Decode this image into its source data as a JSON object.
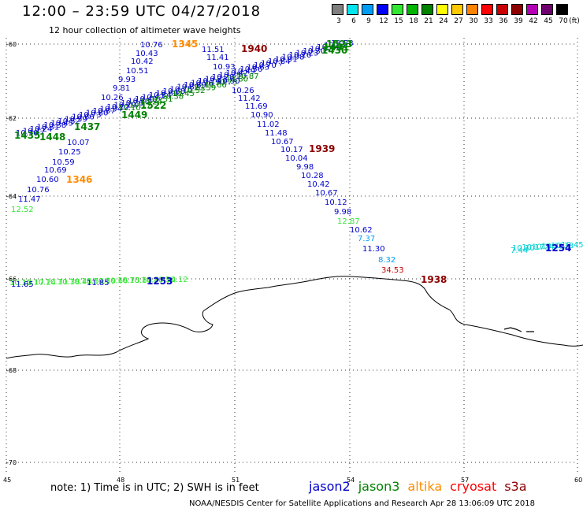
{
  "header": {
    "title": "12:00 – 23:59 UTC 04/27/2018",
    "subtitle": "12 hour collection of altimeter wave heights"
  },
  "scale": {
    "unit": "(ft)",
    "bins": [
      {
        "label": "3",
        "color": "#7f7f7f"
      },
      {
        "label": "6",
        "color": "#00e5ee"
      },
      {
        "label": "9",
        "color": "#009cf5"
      },
      {
        "label": "12",
        "color": "#0000ff"
      },
      {
        "label": "15",
        "color": "#32e632"
      },
      {
        "label": "18",
        "color": "#00b400"
      },
      {
        "label": "21",
        "color": "#008200"
      },
      {
        "label": "24",
        "color": "#ffff00"
      },
      {
        "label": "27",
        "color": "#ffc800"
      },
      {
        "label": "30",
        "color": "#ff8200"
      },
      {
        "label": "33",
        "color": "#ff0000"
      },
      {
        "label": "36",
        "color": "#c80000"
      },
      {
        "label": "39",
        "color": "#8c0000"
      },
      {
        "label": "42",
        "color": "#b400b4"
      },
      {
        "label": "45",
        "color": "#6e006e"
      },
      {
        "label": "70",
        "color": "#000000"
      }
    ]
  },
  "axes": {
    "lat_labels": [
      "-60",
      "-62",
      "-64",
      "-66",
      "-68",
      "-70"
    ],
    "lon_labels": [
      "45",
      "48",
      "51",
      "54",
      "57",
      "60"
    ]
  },
  "observations": [
    {
      "text": "10.76",
      "color": "#0000cc"
    },
    {
      "text": "10.43",
      "color": "#0000cc"
    },
    {
      "text": "10.42",
      "color": "#0000cc"
    },
    {
      "text": "10.51",
      "color": "#0000cc"
    },
    {
      "text": "9.93",
      "color": "#0000cc"
    },
    {
      "text": "9.81",
      "color": "#0000cc"
    },
    {
      "text": "10.26",
      "color": "#0000cc"
    },
    {
      "text": "10.07",
      "color": "#0000cc"
    },
    {
      "text": "10.25",
      "color": "#0000cc"
    },
    {
      "text": "10.59",
      "color": "#0000cc"
    },
    {
      "text": "10.69",
      "color": "#0000cc"
    },
    {
      "text": "10.60",
      "color": "#0000cc"
    },
    {
      "text": "10.76",
      "color": "#0000cc"
    },
    {
      "text": "11.47",
      "color": "#0000cc"
    },
    {
      "text": "12.52",
      "color": "#32e632"
    },
    {
      "text": "11.51",
      "color": "#0000cc"
    },
    {
      "text": "11.41",
      "color": "#0000cc"
    },
    {
      "text": "10.93",
      "color": "#0000cc"
    },
    {
      "text": "10.90",
      "color": "#0000cc"
    },
    {
      "text": "10.26",
      "color": "#0000cc"
    },
    {
      "text": "11.42",
      "color": "#0000cc"
    },
    {
      "text": "11.69",
      "color": "#0000cc"
    },
    {
      "text": "10.90",
      "color": "#0000cc"
    },
    {
      "text": "11.02",
      "color": "#0000cc"
    },
    {
      "text": "11.48",
      "color": "#0000cc"
    },
    {
      "text": "10.67",
      "color": "#0000cc"
    },
    {
      "text": "10.17",
      "color": "#0000cc"
    },
    {
      "text": "10.04",
      "color": "#0000cc"
    },
    {
      "text": "9.98",
      "color": "#0000cc"
    },
    {
      "text": "10.28",
      "color": "#0000cc"
    },
    {
      "text": "10.42",
      "color": "#0000cc"
    },
    {
      "text": "10.67",
      "color": "#0000cc"
    },
    {
      "text": "10.12",
      "color": "#0000cc"
    },
    {
      "text": "9.98",
      "color": "#0000cc"
    },
    {
      "text": "12.87",
      "color": "#32e632"
    },
    {
      "text": "7.37",
      "color": "#009cf5"
    },
    {
      "text": "10.62",
      "color": "#0000cc"
    },
    {
      "text": "11.30",
      "color": "#0000cc"
    },
    {
      "text": "8.32",
      "color": "#009cf5"
    },
    {
      "text": "34.53",
      "color": "#c80000"
    },
    {
      "text": "7.44",
      "color": "#00d0d0"
    },
    {
      "text": "11.65",
      "color": "#0000cc"
    },
    {
      "text": "11.85",
      "color": "#0000cc"
    }
  ],
  "pass_times": [
    {
      "text": "1345",
      "color": "#ff8c00"
    },
    {
      "text": "1940",
      "color": "#8c0000"
    },
    {
      "text": "1939",
      "color": "#8c0000"
    },
    {
      "text": "1346",
      "color": "#ff8c00"
    },
    {
      "text": "1938",
      "color": "#8c0000"
    },
    {
      "text": "1430",
      "color": "#008200"
    },
    {
      "text": "1449",
      "color": "#008200"
    },
    {
      "text": "1448",
      "color": "#008200"
    },
    {
      "text": "1522",
      "color": "#008200"
    },
    {
      "text": "1431",
      "color": "#008200"
    },
    {
      "text": "1523",
      "color": "#008200"
    },
    {
      "text": "1437",
      "color": "#008200"
    },
    {
      "text": "1435",
      "color": "#008200"
    },
    {
      "text": "1254",
      "color": "#0000cc"
    },
    {
      "text": "1253",
      "color": "#0000cc"
    }
  ],
  "footer": {
    "note": "note: 1) Time is in UTC; 2) SWH is in feet",
    "satellites": [
      {
        "name": "jason2",
        "color": "#0000cc"
      },
      {
        "name": "jason3",
        "color": "#008200"
      },
      {
        "name": "altika",
        "color": "#ff8c00"
      },
      {
        "name": "cryosat",
        "color": "#ff0000"
      },
      {
        "name": "s3a",
        "color": "#8c0000"
      }
    ],
    "credit": "NOAA/NESDIS Center for Satellite Applications and Research    Apr 28 13:06:09 UTC 2018"
  }
}
